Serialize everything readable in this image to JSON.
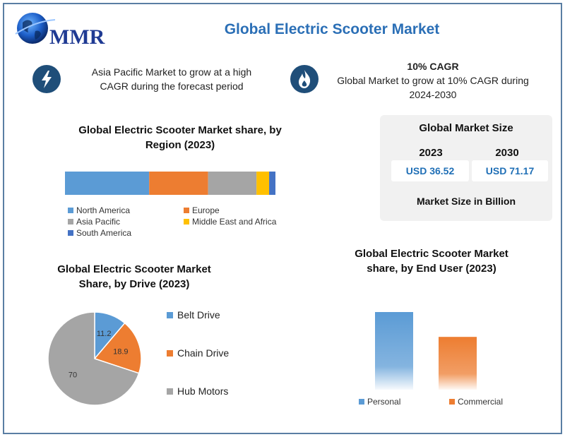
{
  "header": {
    "logo_text": "MMR",
    "title": "Global Electric Scooter Market"
  },
  "highlights": [
    {
      "icon": "lightning-icon",
      "lines": [
        "Asia Pacific Market to grow at a high",
        "CAGR during the forecast period"
      ]
    },
    {
      "icon": "flame-icon",
      "heading": "10% CAGR",
      "lines": [
        "Global Market to grow at 10% CAGR during",
        "2024-2030"
      ]
    }
  ],
  "market_size": {
    "title": "Global Market Size",
    "years": [
      "2023",
      "2030"
    ],
    "values": [
      "USD 36.52",
      "USD 71.17"
    ],
    "note": "Market Size in Billion"
  },
  "colors": {
    "blue": "#5b9bd5",
    "orange": "#ed7d31",
    "gray": "#a5a5a5",
    "yellow": "#ffc000",
    "dark_blue": "#4472c4",
    "icon_bg": "#1f4e79"
  },
  "chart_data": [
    {
      "type": "bar",
      "orientation": "horizontal-stacked",
      "title_lines": [
        "Global Electric Scooter Market share, by",
        "Region (2023)"
      ],
      "categories": [
        "2023"
      ],
      "series": [
        {
          "name": "North America",
          "values": [
            40
          ],
          "color": "#5b9bd5"
        },
        {
          "name": "Europe",
          "values": [
            28
          ],
          "color": "#ed7d31"
        },
        {
          "name": "Asia Pacific",
          "values": [
            23
          ],
          "color": "#a5a5a5"
        },
        {
          "name": "Middle East and Africa",
          "values": [
            6
          ],
          "color": "#ffc000"
        },
        {
          "name": "South America",
          "values": [
            3
          ],
          "color": "#4472c4"
        }
      ],
      "xlim": [
        0,
        100
      ],
      "legend_position": "bottom"
    },
    {
      "type": "pie",
      "title_lines": [
        "Global Electric Scooter Market",
        "Share, by Drive (2023)"
      ],
      "slices": [
        {
          "name": "Belt Drive",
          "value": 11.2,
          "label": "11.2",
          "color": "#5b9bd5"
        },
        {
          "name": "Chain Drive",
          "value": 18.9,
          "label": "18.9",
          "color": "#ed7d31"
        },
        {
          "name": "Hub Motors",
          "value": 70,
          "label": "70",
          "color": "#a5a5a5"
        }
      ],
      "legend_position": "right"
    },
    {
      "type": "bar",
      "title_lines": [
        "Global Electric Scooter Market",
        "share, by End User (2023)"
      ],
      "series": [
        {
          "name": "Personal",
          "values": [
            100
          ],
          "color": "#5b9bd5"
        },
        {
          "name": "Commercial",
          "values": [
            68
          ],
          "color": "#ed7d31"
        }
      ],
      "ylim": [
        0,
        100
      ],
      "legend_position": "bottom"
    }
  ]
}
